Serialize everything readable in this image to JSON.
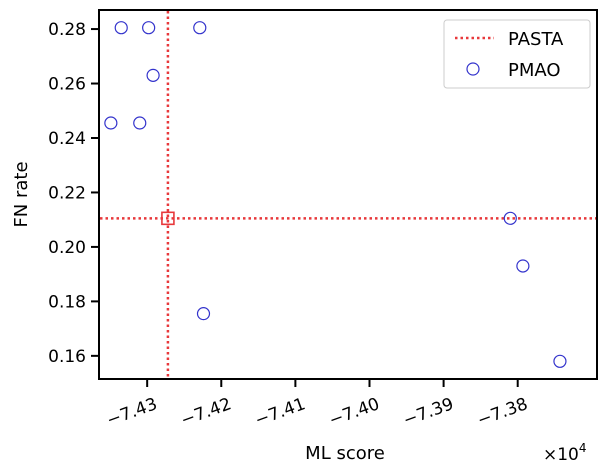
{
  "chart_data": {
    "type": "scatter",
    "xlabel": "ML score",
    "ylabel": "FN rate",
    "x_offset_label": "×10",
    "x_offset_exponent": "4",
    "xlim": [
      -74365,
      -73693
    ],
    "ylim": [
      0.1515,
      0.287
    ],
    "x_ticks": [
      {
        "value": -74300,
        "label": "−7.43"
      },
      {
        "value": -74200,
        "label": "−7.42"
      },
      {
        "value": -74100,
        "label": "−7.41"
      },
      {
        "value": -74000,
        "label": "−7.40"
      },
      {
        "value": -73900,
        "label": "−7.39"
      },
      {
        "value": -73800,
        "label": "−7.38"
      }
    ],
    "y_ticks": [
      {
        "value": 0.16,
        "label": "0.16"
      },
      {
        "value": 0.18,
        "label": "0.18"
      },
      {
        "value": 0.2,
        "label": "0.20"
      },
      {
        "value": 0.22,
        "label": "0.22"
      },
      {
        "value": 0.24,
        "label": "0.24"
      },
      {
        "value": 0.26,
        "label": "0.26"
      },
      {
        "value": 0.28,
        "label": "0.28"
      }
    ],
    "reference": {
      "name": "PASTA",
      "x": -74272,
      "y": 0.2105,
      "color": "#e8383b",
      "style": "dotted crosshair with square marker"
    },
    "series": [
      {
        "name": "PMAO",
        "color": "#3333cc",
        "marker": "open circle",
        "points": [
          {
            "x": -74335,
            "y": 0.2805
          },
          {
            "x": -74298,
            "y": 0.2805
          },
          {
            "x": -74229,
            "y": 0.2805
          },
          {
            "x": -74292,
            "y": 0.263
          },
          {
            "x": -74349,
            "y": 0.2455
          },
          {
            "x": -74310,
            "y": 0.2455
          },
          {
            "x": -74224,
            "y": 0.1755
          },
          {
            "x": -73810,
            "y": 0.2105
          },
          {
            "x": -73793,
            "y": 0.193
          },
          {
            "x": -73743,
            "y": 0.158
          }
        ]
      }
    ],
    "legend": {
      "position": "top-right",
      "entries": [
        "PASTA",
        "PMAO"
      ]
    }
  }
}
